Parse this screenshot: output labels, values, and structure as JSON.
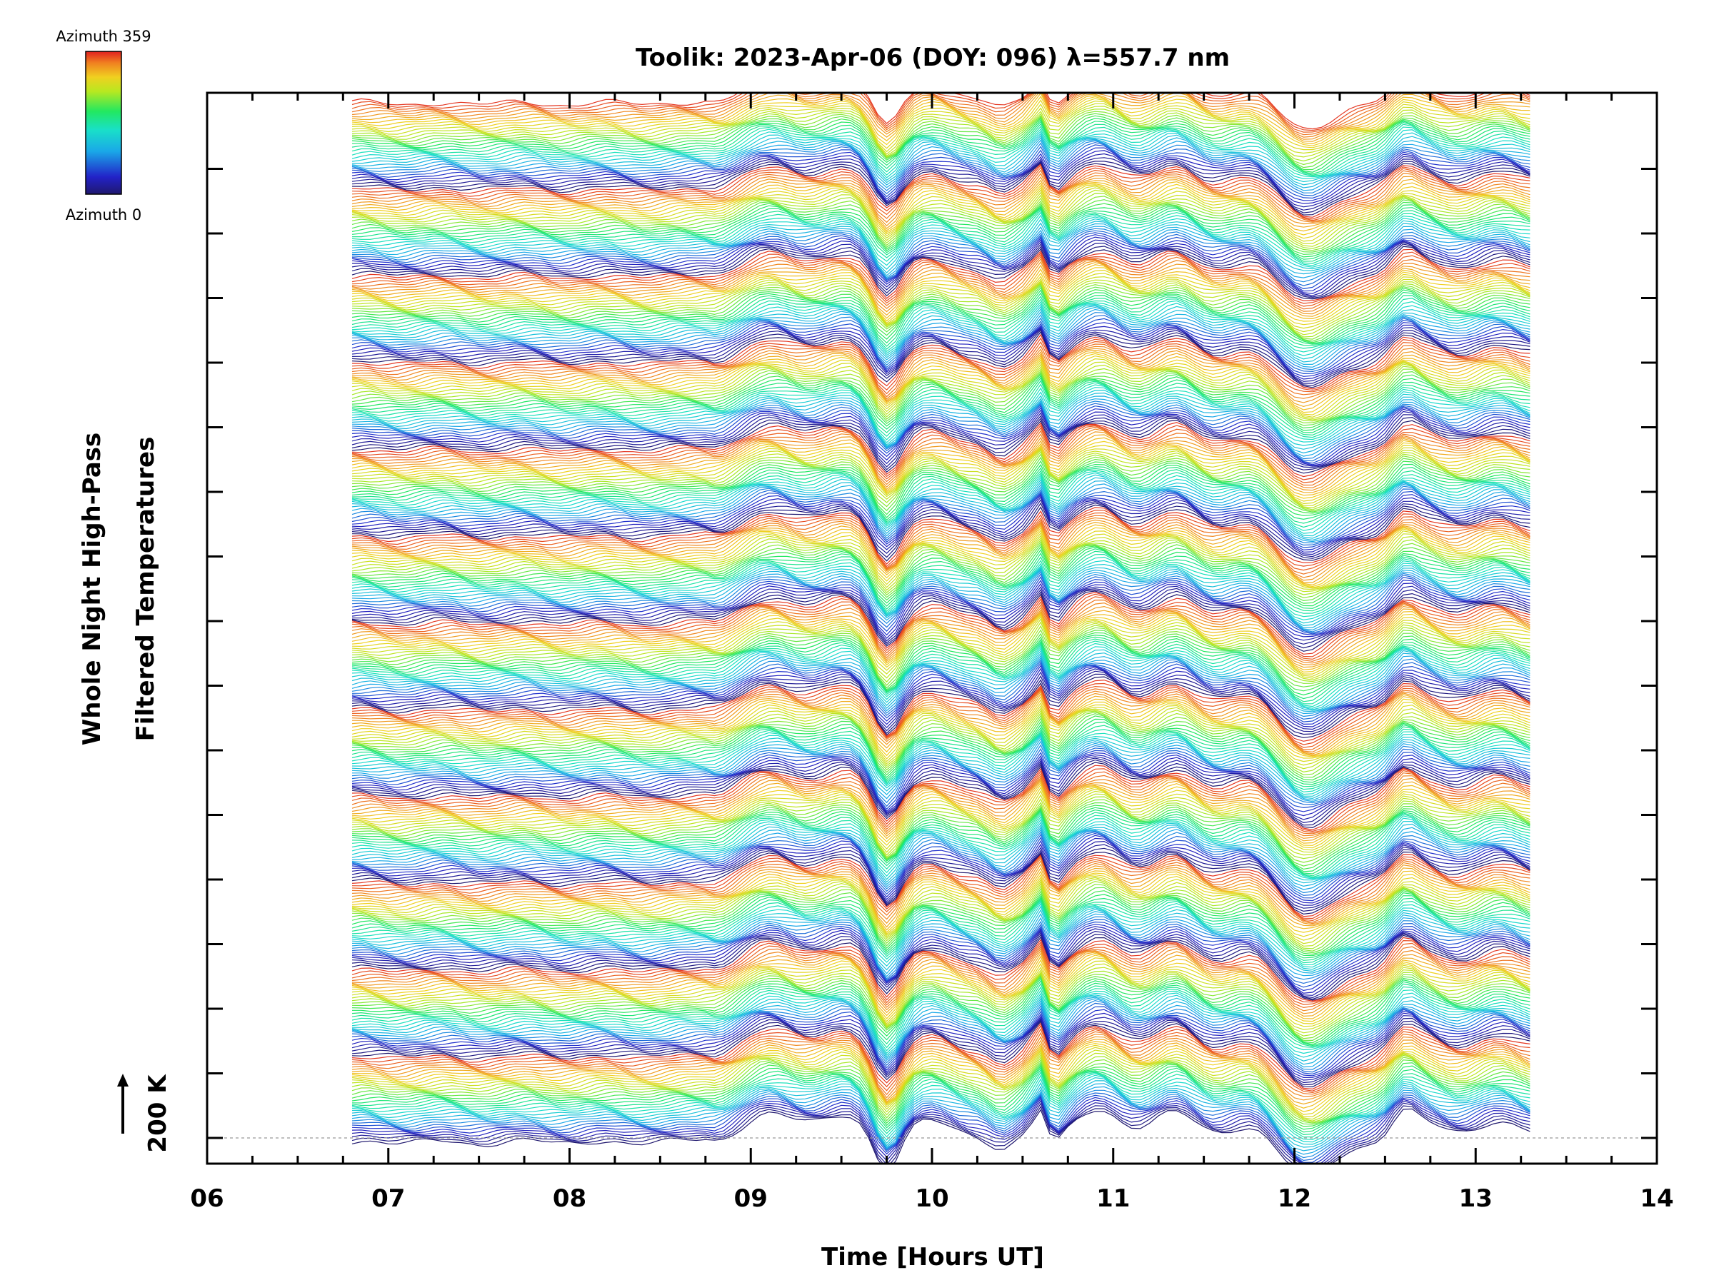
{
  "chart_data": {
    "type": "line",
    "title": "Toolik: 2023-Apr-06 (DOY: 096) λ=557.7 nm",
    "xlabel": "Time [Hours UT]",
    "ylabel_lines": [
      "Whole Night High-Pass",
      "Filtered Temperatures"
    ],
    "scale_label": "200 K",
    "xlim": [
      6,
      14
    ],
    "x_tick_labels": [
      "06",
      "07",
      "08",
      "09",
      "10",
      "11",
      "12",
      "13",
      "14"
    ],
    "x_range_data": [
      6.8,
      13.3
    ],
    "grid": false,
    "colorbar": {
      "top_label": "Azimuth 359",
      "bottom_label": "Azimuth 0",
      "colormap": "rainbow",
      "colors": [
        "#20186e",
        "#2222c8",
        "#1aa8e8",
        "#19e0c8",
        "#22e860",
        "#b8e820",
        "#f0d020",
        "#f08020",
        "#e02020"
      ]
    },
    "keogram": {
      "groups": 12,
      "azimuth_steps_per_group": 36,
      "feature_times_hours": [
        8.85,
        9.75,
        10.4,
        10.6,
        11.65,
        12.1,
        12.6
      ],
      "feature_shapes": [
        "rise",
        "dip",
        "dip",
        "spike",
        "rise",
        "dip",
        "bump"
      ]
    }
  }
}
